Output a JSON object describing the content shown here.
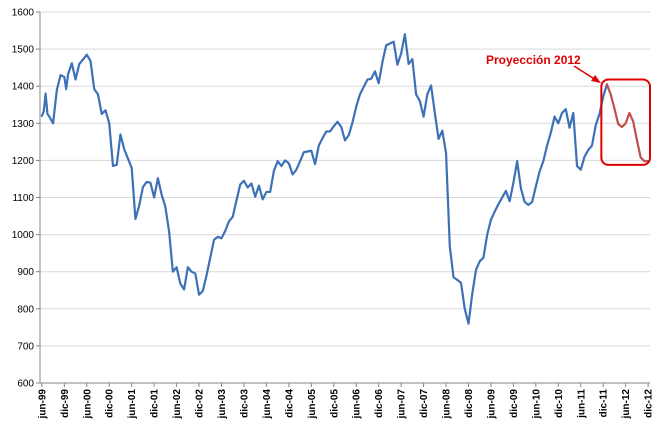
{
  "chart_data": {
    "type": "line",
    "title": "",
    "xlabel": "",
    "ylabel": "",
    "ylim": [
      600,
      1600
    ],
    "yticks": [
      600,
      700,
      800,
      900,
      1000,
      1100,
      1200,
      1300,
      1400,
      1500,
      1600
    ],
    "grid": true,
    "legend": "none",
    "xtick_labels": [
      "jun-99",
      "dic-99",
      "jun-00",
      "dic-00",
      "jun-01",
      "dic-01",
      "jun-02",
      "dic-02",
      "jun-03",
      "dic-03",
      "jun-04",
      "dic-04",
      "jun-05",
      "dic-05",
      "jun-06",
      "dic-06",
      "jun-07",
      "dic-07",
      "jun-08",
      "dic-08",
      "jun-09",
      "dic-09",
      "jun-10",
      "dic-10",
      "jun-11",
      "dic-11",
      "jun-12",
      "dic-12"
    ],
    "series": [
      {
        "role": "historical",
        "color": "#3d71b7",
        "points": [
          [
            0,
            1320
          ],
          [
            0.5,
            1332
          ],
          [
            1,
            1380
          ],
          [
            1.5,
            1325
          ],
          [
            2,
            1318
          ],
          [
            3,
            1300
          ],
          [
            4,
            1390
          ],
          [
            5,
            1430
          ],
          [
            6,
            1425
          ],
          [
            6.5,
            1392
          ],
          [
            7,
            1432
          ],
          [
            8,
            1462
          ],
          [
            9,
            1418
          ],
          [
            10,
            1460
          ],
          [
            11,
            1472
          ],
          [
            12,
            1485
          ],
          [
            13,
            1468
          ],
          [
            14,
            1392
          ],
          [
            15,
            1378
          ],
          [
            16,
            1325
          ],
          [
            17,
            1335
          ],
          [
            18,
            1300
          ],
          [
            19,
            1185
          ],
          [
            20,
            1188
          ],
          [
            21,
            1270
          ],
          [
            22,
            1230
          ],
          [
            23,
            1205
          ],
          [
            24,
            1180
          ],
          [
            25,
            1042
          ],
          [
            26,
            1078
          ],
          [
            27,
            1128
          ],
          [
            28,
            1142
          ],
          [
            29,
            1140
          ],
          [
            30,
            1100
          ],
          [
            31,
            1152
          ],
          [
            32,
            1108
          ],
          [
            33,
            1075
          ],
          [
            34,
            1008
          ],
          [
            35,
            900
          ],
          [
            36,
            912
          ],
          [
            37,
            868
          ],
          [
            38,
            852
          ],
          [
            39,
            912
          ],
          [
            40,
            900
          ],
          [
            41,
            895
          ],
          [
            42,
            838
          ],
          [
            43,
            848
          ],
          [
            44,
            890
          ],
          [
            45,
            938
          ],
          [
            46,
            986
          ],
          [
            47,
            994
          ],
          [
            48,
            990
          ],
          [
            49,
            1010
          ],
          [
            50,
            1036
          ],
          [
            51,
            1048
          ],
          [
            52,
            1092
          ],
          [
            53,
            1135
          ],
          [
            54,
            1145
          ],
          [
            55,
            1127
          ],
          [
            56,
            1138
          ],
          [
            57,
            1102
          ],
          [
            58,
            1132
          ],
          [
            59,
            1095
          ],
          [
            60,
            1115
          ],
          [
            61,
            1115
          ],
          [
            62,
            1172
          ],
          [
            63,
            1198
          ],
          [
            64,
            1185
          ],
          [
            65,
            1200
          ],
          [
            66,
            1192
          ],
          [
            67,
            1162
          ],
          [
            68,
            1175
          ],
          [
            69,
            1198
          ],
          [
            70,
            1222
          ],
          [
            71,
            1224
          ],
          [
            72,
            1226
          ],
          [
            73,
            1190
          ],
          [
            74,
            1240
          ],
          [
            75,
            1260
          ],
          [
            76,
            1278
          ],
          [
            77,
            1278
          ],
          [
            78,
            1292
          ],
          [
            79,
            1304
          ],
          [
            80,
            1290
          ],
          [
            81,
            1254
          ],
          [
            82,
            1268
          ],
          [
            83,
            1302
          ],
          [
            84,
            1345
          ],
          [
            85,
            1378
          ],
          [
            86,
            1398
          ],
          [
            87,
            1418
          ],
          [
            88,
            1420
          ],
          [
            89,
            1440
          ],
          [
            90,
            1408
          ],
          [
            91,
            1465
          ],
          [
            92,
            1510
          ],
          [
            93,
            1515
          ],
          [
            94,
            1520
          ],
          [
            95,
            1458
          ],
          [
            96,
            1488
          ],
          [
            97,
            1540
          ],
          [
            98,
            1460
          ],
          [
            99,
            1473
          ],
          [
            100,
            1378
          ],
          [
            101,
            1360
          ],
          [
            102,
            1318
          ],
          [
            103,
            1378
          ],
          [
            104,
            1402
          ],
          [
            105,
            1328
          ],
          [
            106,
            1258
          ],
          [
            107,
            1280
          ],
          [
            108,
            1220
          ],
          [
            109,
            968
          ],
          [
            110,
            885
          ],
          [
            111,
            878
          ],
          [
            112,
            870
          ],
          [
            113,
            800
          ],
          [
            114,
            760
          ],
          [
            115,
            840
          ],
          [
            116,
            905
          ],
          [
            117,
            928
          ],
          [
            118,
            938
          ],
          [
            119,
            1000
          ],
          [
            120,
            1040
          ],
          [
            121,
            1062
          ],
          [
            122,
            1082
          ],
          [
            123,
            1100
          ],
          [
            124,
            1118
          ],
          [
            125,
            1090
          ],
          [
            126,
            1140
          ],
          [
            127,
            1198
          ],
          [
            128,
            1125
          ],
          [
            129,
            1088
          ],
          [
            130,
            1080
          ],
          [
            131,
            1088
          ],
          [
            132,
            1130
          ],
          [
            133,
            1170
          ],
          [
            134,
            1198
          ],
          [
            135,
            1240
          ],
          [
            136,
            1275
          ],
          [
            137,
            1318
          ],
          [
            138,
            1300
          ],
          [
            139,
            1328
          ],
          [
            140,
            1338
          ],
          [
            141,
            1288
          ],
          [
            142,
            1328
          ],
          [
            143,
            1185
          ],
          [
            144,
            1175
          ],
          [
            145,
            1210
          ],
          [
            146,
            1228
          ],
          [
            147,
            1240
          ],
          [
            148,
            1295
          ],
          [
            149,
            1325
          ],
          [
            150,
            1372
          ],
          [
            151,
            1405
          ]
        ]
      },
      {
        "role": "projection",
        "color": "#c0504d",
        "points": [
          [
            151,
            1405
          ],
          [
            152,
            1378
          ],
          [
            153,
            1340
          ],
          [
            154,
            1298
          ],
          [
            155,
            1290
          ],
          [
            156,
            1300
          ],
          [
            157,
            1328
          ],
          [
            158,
            1305
          ],
          [
            159,
            1255
          ],
          [
            160,
            1208
          ],
          [
            161,
            1198
          ],
          [
            162,
            1198
          ]
        ]
      }
    ],
    "annotation": {
      "text": "Proyección 2012",
      "color": "#e00000",
      "box": {
        "x_from": 149.5,
        "x_to": 162.5,
        "y_from": 1188,
        "y_to": 1418
      }
    }
  }
}
